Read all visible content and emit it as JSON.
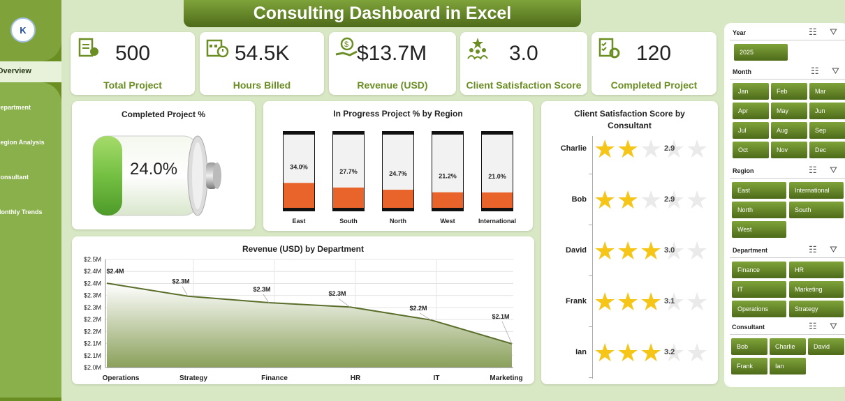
{
  "title": "Consulting Dashboard in Excel",
  "logo_text": "K",
  "nav": {
    "active": "Overview",
    "items": [
      "Department",
      "Region Analysis",
      "Consultant",
      "Monthly Trends"
    ]
  },
  "kpis": [
    {
      "value": "500",
      "label": "Total Project",
      "icon": "clipboard-icon"
    },
    {
      "value": "54.5K",
      "label": "Hours Billed",
      "icon": "calendar-clock-icon"
    },
    {
      "value": "$13.7M",
      "label": "Revenue (USD)",
      "icon": "money-hand-icon"
    },
    {
      "value": "3.0",
      "label": "Client Satisfaction Score",
      "icon": "team-star-icon"
    },
    {
      "value": "120",
      "label": "Completed Project",
      "icon": "checklist-gear-icon"
    }
  ],
  "completed": {
    "title": "Completed Project %",
    "value": "24.0%",
    "fraction": 0.24
  },
  "region_chart": {
    "title": "In Progress Project % by Region",
    "chart_data": {
      "type": "bar",
      "categories": [
        "East",
        "South",
        "North",
        "West",
        "International"
      ],
      "values": [
        34.0,
        27.7,
        24.7,
        21.2,
        21.0
      ],
      "labels": [
        "34.0%",
        "27.7%",
        "24.7%",
        "21.2%",
        "21.0%"
      ],
      "ylim": [
        0,
        100
      ]
    }
  },
  "dept_chart": {
    "title": "Revenue (USD) by Department",
    "chart_data": {
      "type": "area",
      "categories": [
        "Operations",
        "Strategy",
        "Finance",
        "HR",
        "IT",
        "Marketing"
      ],
      "values": [
        2.39,
        2.33,
        2.3,
        2.28,
        2.22,
        2.11
      ],
      "labels": [
        "$2.4M",
        "$2.3M",
        "$2.3M",
        "$2.3M",
        "$2.2M",
        "$2.1M"
      ],
      "yticks": [
        "$2.0M",
        "$2.1M",
        "$2.1M",
        "$2.2M",
        "$2.2M",
        "$2.3M",
        "$2.3M",
        "$2.4M",
        "$2.4M",
        "$2.5M"
      ],
      "ylim": [
        2.0,
        2.5
      ]
    }
  },
  "consultant_chart": {
    "title_line1": "Client Satisfaction Score by",
    "title_line2": "Consultant",
    "chart_data": {
      "type": "bar",
      "categories": [
        "Charlie",
        "Bob",
        "David",
        "Frank",
        "Ian"
      ],
      "values": [
        2.9,
        2.9,
        3.0,
        3.1,
        3.2
      ],
      "labels": [
        "2.9",
        "2.9",
        "3.0",
        "3.1",
        "3.2"
      ],
      "max_stars": 5
    }
  },
  "filters": {
    "year": {
      "label": "Year",
      "options": [
        "2025"
      ]
    },
    "month": {
      "label": "Month",
      "options": [
        "Jan",
        "Feb",
        "Mar",
        "Apr",
        "May",
        "Jun",
        "Jul",
        "Aug",
        "Sep",
        "Oct",
        "Nov",
        "Dec"
      ]
    },
    "region": {
      "label": "Region",
      "options": [
        "East",
        "International",
        "North",
        "South",
        "West"
      ]
    },
    "department": {
      "label": "Department",
      "options": [
        "Finance",
        "HR",
        "IT",
        "Marketing",
        "Operations",
        "Strategy"
      ]
    },
    "consultant": {
      "label": "Consultant",
      "options": [
        "Bob",
        "Charlie",
        "David",
        "Frank",
        "Ian"
      ]
    }
  },
  "colors": {
    "accent": "#6b8e23",
    "bar_fill": "#e8642a",
    "star": "#f5c518",
    "line": "#5a6e2a"
  }
}
